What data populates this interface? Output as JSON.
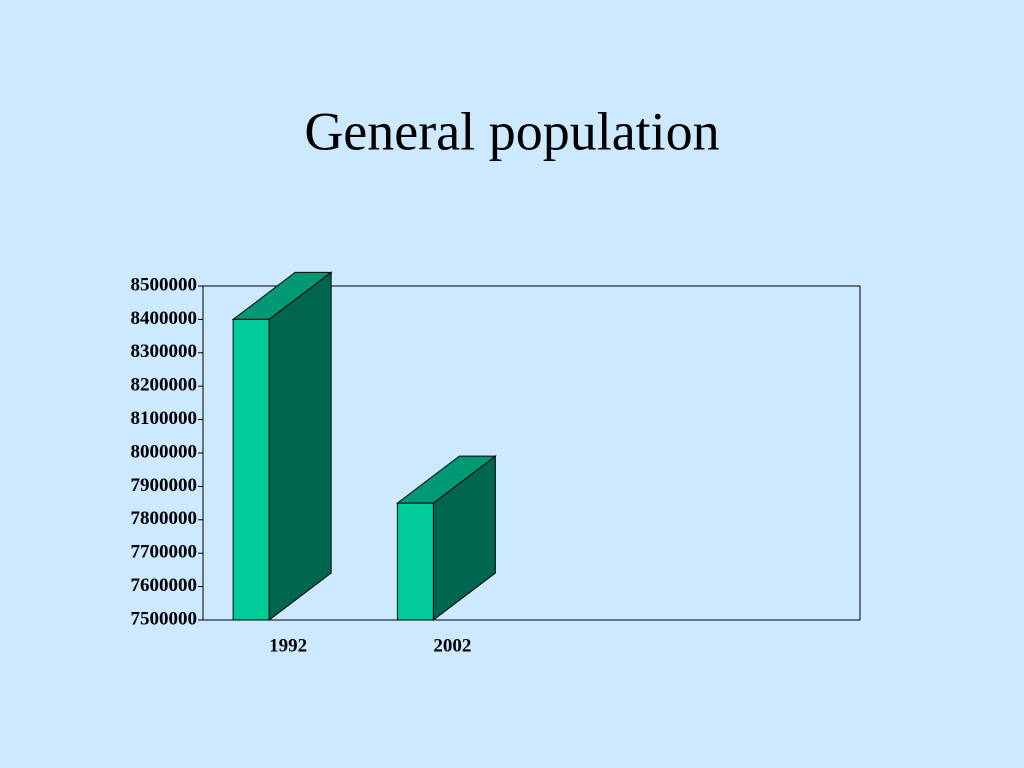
{
  "chart_data": {
    "type": "bar3d",
    "title": "General population",
    "categories": [
      "1992",
      "2002",
      null,
      null
    ],
    "values": [
      8400000,
      7850000,
      null,
      null
    ],
    "colors": {
      "front": "#00cc99",
      "side": "#006650",
      "top": "#009973"
    },
    "ylim": [
      7500000,
      8500000
    ],
    "yticks": [
      7500000,
      7600000,
      7700000,
      7800000,
      7900000,
      8000000,
      8100000,
      8200000,
      8300000,
      8400000,
      8500000
    ]
  }
}
